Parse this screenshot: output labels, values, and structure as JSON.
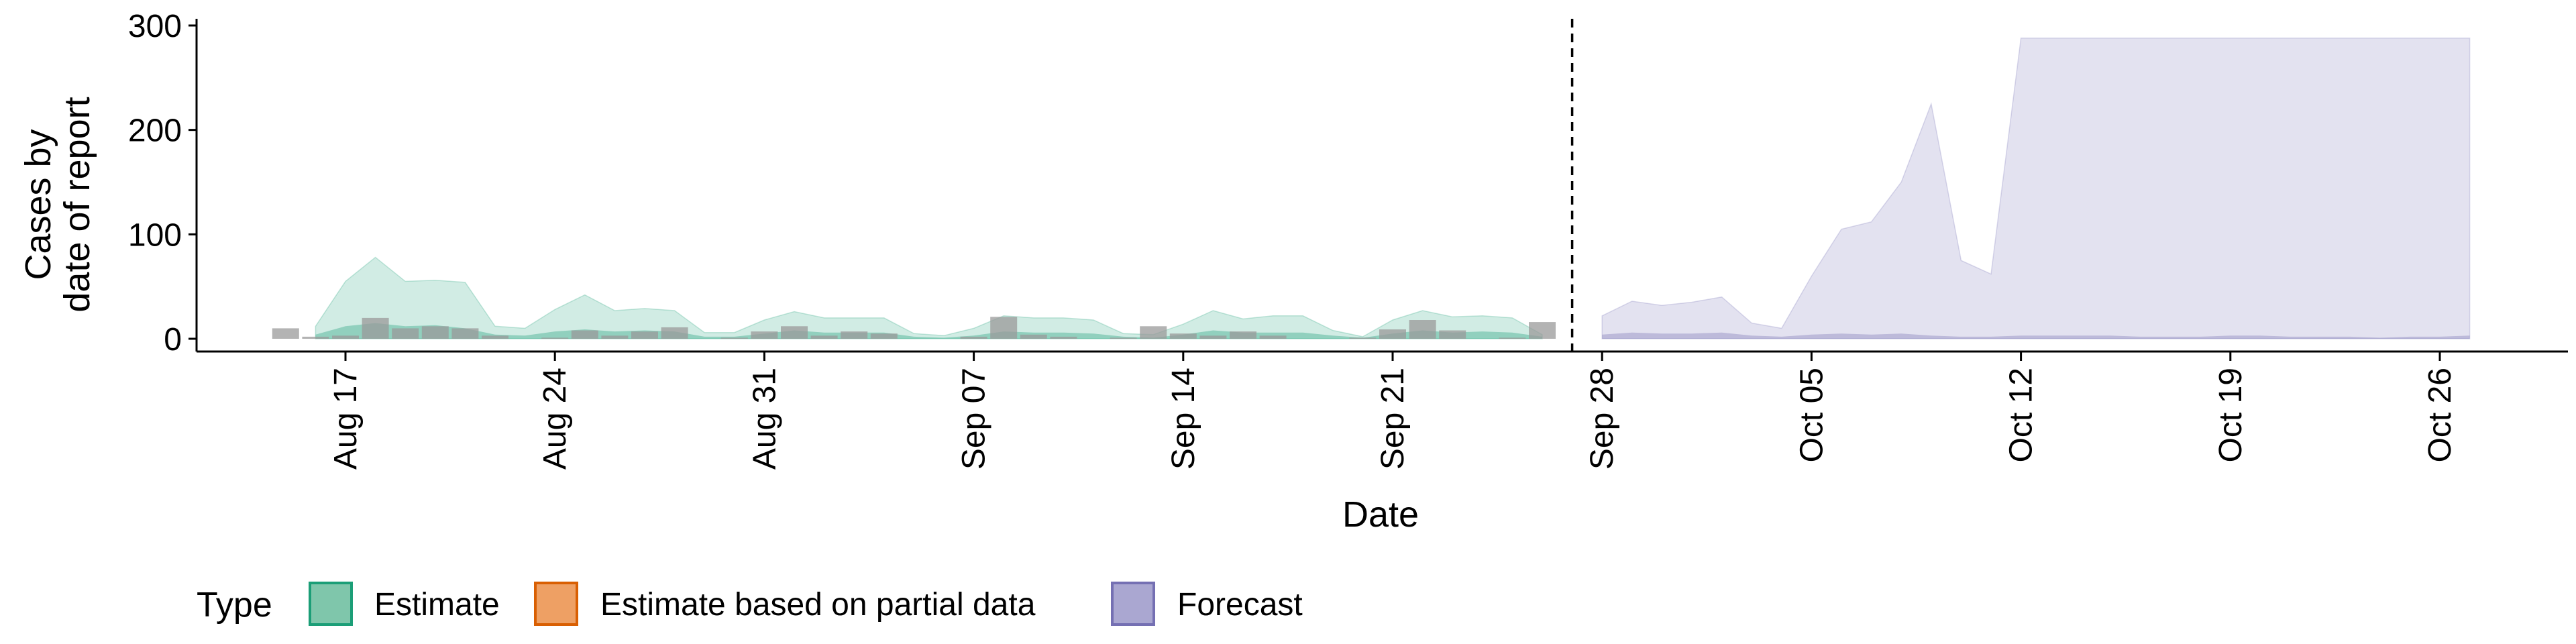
{
  "chart_data": {
    "type": "area",
    "title": "",
    "xlabel": "Date",
    "ylabel_lines": [
      "Cases by",
      "date of report"
    ],
    "ylim": [
      0,
      300
    ],
    "y_ticks": [
      0,
      100,
      200,
      300
    ],
    "x_ticks": [
      "Aug 17",
      "Aug 24",
      "Aug 31",
      "Sep 07",
      "Sep 14",
      "Sep 21",
      "Sep 28",
      "Oct 05",
      "Oct 12",
      "Oct 19",
      "Oct 26"
    ],
    "forecast_start_marker": "Sep 27",
    "legend": {
      "title": "Type",
      "position": "bottom-left",
      "entries": [
        {
          "label": "Estimate",
          "fill": "#7fc6ab",
          "stroke": "#1b9e77"
        },
        {
          "label": "Estimate based on partial data",
          "fill": "#eea064",
          "stroke": "#d95f02"
        },
        {
          "label": "Forecast",
          "fill": "#aaa7d1",
          "stroke": "#7570b3"
        }
      ]
    },
    "colors": {
      "estimate": "#1b9e77",
      "forecast": "#7570b3",
      "reported_bars": "#9a9a9a"
    },
    "reported_cases": {
      "dates": [
        "Aug 15",
        "Aug 16",
        "Aug 17",
        "Aug 18",
        "Aug 19",
        "Aug 20",
        "Aug 21",
        "Aug 22",
        "Aug 23",
        "Aug 24",
        "Aug 25",
        "Aug 26",
        "Aug 27",
        "Aug 28",
        "Aug 29",
        "Aug 30",
        "Aug 31",
        "Sep 01",
        "Sep 02",
        "Sep 03",
        "Sep 04",
        "Sep 05",
        "Sep 06",
        "Sep 07",
        "Sep 08",
        "Sep 09",
        "Sep 10",
        "Sep 11",
        "Sep 12",
        "Sep 13",
        "Sep 14",
        "Sep 15",
        "Sep 16",
        "Sep 17",
        "Sep 18",
        "Sep 19",
        "Sep 20",
        "Sep 21",
        "Sep 22",
        "Sep 23",
        "Sep 24",
        "Sep 25",
        "Sep 26"
      ],
      "values": [
        10,
        2,
        3,
        20,
        10,
        12,
        10,
        3,
        0,
        1,
        8,
        3,
        7,
        11,
        0,
        1,
        7,
        12,
        3,
        7,
        5,
        0,
        0,
        2,
        21,
        4,
        2,
        0,
        1,
        12,
        5,
        3,
        7,
        3,
        0,
        0,
        1,
        9,
        18,
        8,
        0,
        1,
        16
      ]
    },
    "estimate": {
      "dates": [
        "Aug 16",
        "Aug 17",
        "Aug 18",
        "Aug 19",
        "Aug 20",
        "Aug 21",
        "Aug 22",
        "Aug 23",
        "Aug 24",
        "Aug 25",
        "Aug 26",
        "Aug 27",
        "Aug 28",
        "Aug 29",
        "Aug 30",
        "Aug 31",
        "Sep 01",
        "Sep 02",
        "Sep 03",
        "Sep 04",
        "Sep 05",
        "Sep 06",
        "Sep 07",
        "Sep 08",
        "Sep 09",
        "Sep 10",
        "Sep 11",
        "Sep 12",
        "Sep 13",
        "Sep 14",
        "Sep 15",
        "Sep 16",
        "Sep 17",
        "Sep 18",
        "Sep 19",
        "Sep 20",
        "Sep 21",
        "Sep 22",
        "Sep 23",
        "Sep 24",
        "Sep 25",
        "Sep 26"
      ],
      "upper_90": [
        12,
        55,
        78,
        55,
        56,
        54,
        12,
        10,
        28,
        42,
        27,
        29,
        27,
        6,
        6,
        18,
        26,
        20,
        20,
        20,
        5,
        3,
        10,
        22,
        20,
        20,
        18,
        5,
        4,
        14,
        27,
        19,
        22,
        22,
        8,
        2,
        18,
        27,
        21,
        22,
        20,
        4
      ],
      "upper_50": [
        4,
        12,
        15,
        12,
        13,
        10,
        4,
        3,
        7,
        9,
        7,
        8,
        7,
        2,
        2,
        5,
        8,
        6,
        6,
        6,
        2,
        1,
        3,
        7,
        6,
        6,
        5,
        2,
        1,
        4,
        8,
        6,
        6,
        6,
        3,
        1,
        5,
        8,
        6,
        7,
        6,
        2
      ]
    },
    "forecast": {
      "dates": [
        "Sep 28",
        "Sep 29",
        "Sep 30",
        "Oct 01",
        "Oct 02",
        "Oct 03",
        "Oct 04",
        "Oct 05",
        "Oct 06",
        "Oct 07",
        "Oct 08",
        "Oct 09",
        "Oct 10",
        "Oct 11",
        "Oct 12",
        "Oct 13",
        "Oct 14",
        "Oct 15",
        "Oct 16",
        "Oct 17",
        "Oct 18",
        "Oct 19",
        "Oct 20",
        "Oct 21",
        "Oct 22",
        "Oct 23",
        "Oct 24",
        "Oct 25",
        "Oct 26",
        "Oct 27"
      ],
      "upper_90": [
        22,
        36,
        32,
        35,
        40,
        15,
        10,
        60,
        105,
        112,
        150,
        225,
        75,
        62,
        288,
        288,
        288,
        288,
        288,
        288,
        288,
        288,
        288,
        288,
        288,
        288,
        288,
        288,
        288,
        288
      ],
      "upper_50": [
        4,
        6,
        5,
        5,
        6,
        3,
        2,
        4,
        5,
        4,
        5,
        3,
        2,
        2,
        3,
        3,
        3,
        3,
        2,
        2,
        2,
        3,
        3,
        2,
        2,
        2,
        1,
        2,
        2,
        3
      ]
    }
  }
}
